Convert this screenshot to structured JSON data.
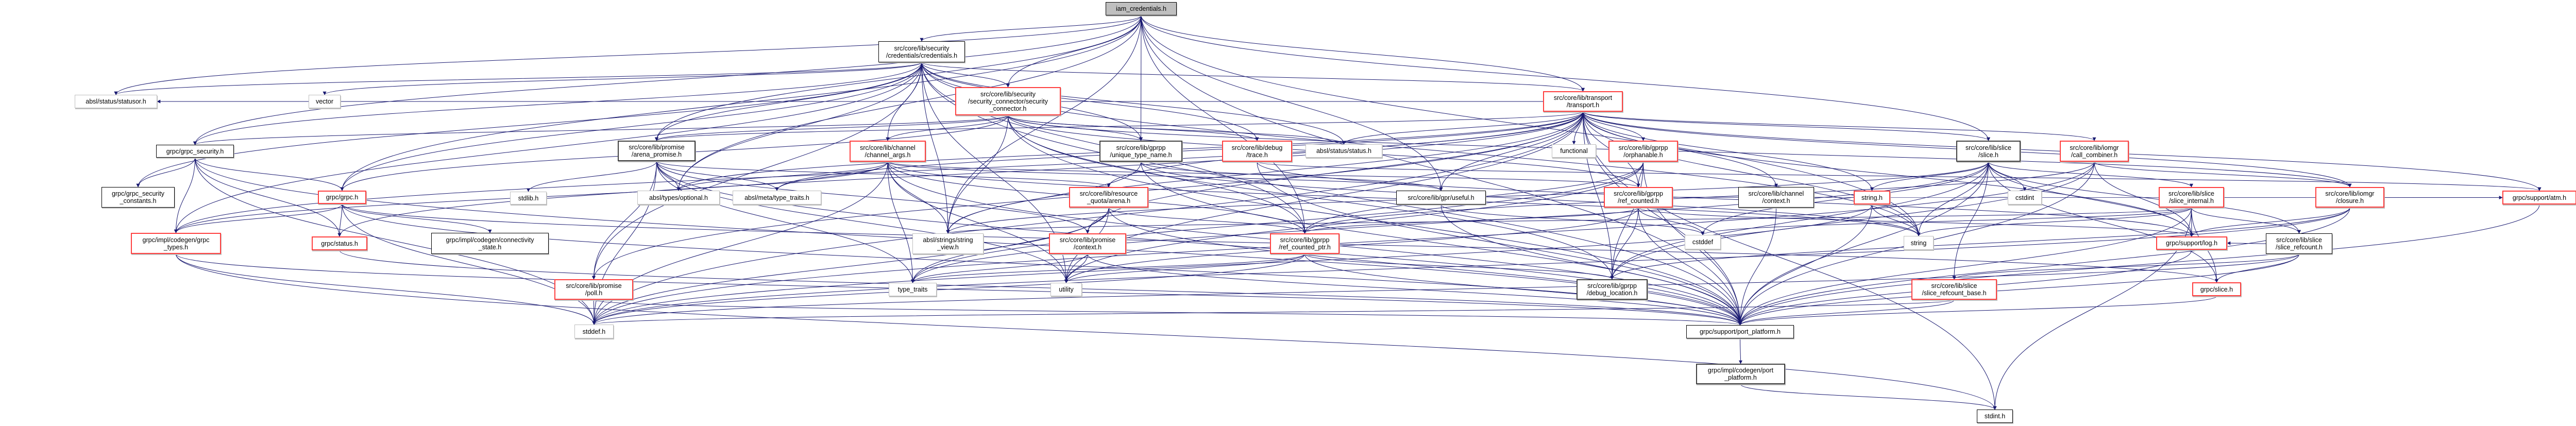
{
  "colors": {
    "edge": "#191970",
    "incomplete_border": "#ff4040",
    "documented_border": "#000000",
    "external_border": "#bfbfbf",
    "root_fill": "#bfbfbf"
  },
  "nodes": [
    {
      "id": "root",
      "label": [
        "iam_credentials.h"
      ],
      "style": "root"
    },
    {
      "id": "credentials",
      "label": [
        "src/core/lib/security",
        "/credentials/credentials.h"
      ],
      "style": "black"
    },
    {
      "id": "statusor",
      "label": [
        "absl/status/statusor.h"
      ],
      "style": "gray"
    },
    {
      "id": "vector",
      "label": [
        "vector"
      ],
      "style": "gray"
    },
    {
      "id": "sec_conn",
      "label": [
        "src/core/lib/security",
        "/security_connector/security",
        "_connector.h"
      ],
      "style": "red"
    },
    {
      "id": "transport",
      "label": [
        "src/core/lib/transport",
        "/transport.h"
      ],
      "style": "red"
    },
    {
      "id": "grpc_security",
      "label": [
        "grpc/grpc_security.h"
      ],
      "style": "black"
    },
    {
      "id": "arena_promise",
      "label": [
        "src/core/lib/promise",
        "/arena_promise.h"
      ],
      "style": "dark"
    },
    {
      "id": "channel_args",
      "label": [
        "src/core/lib/channel",
        "/channel_args.h"
      ],
      "style": "red"
    },
    {
      "id": "unique_type_name",
      "label": [
        "src/core/lib/gprpp",
        "/unique_type_name.h"
      ],
      "style": "dark"
    },
    {
      "id": "trace",
      "label": [
        "src/core/lib/debug",
        "/trace.h"
      ],
      "style": "red"
    },
    {
      "id": "status",
      "label": [
        "absl/status/status.h"
      ],
      "style": "gray"
    },
    {
      "id": "functional",
      "label": [
        "functional"
      ],
      "style": "gray"
    },
    {
      "id": "orphanable",
      "label": [
        "src/core/lib/gprpp",
        "/orphanable.h"
      ],
      "style": "red"
    },
    {
      "id": "slice",
      "label": [
        "src/core/lib/slice",
        "/slice.h"
      ],
      "style": "dark"
    },
    {
      "id": "call_combiner",
      "label": [
        "src/core/lib/iomgr",
        "/call_combiner.h"
      ],
      "style": "red"
    },
    {
      "id": "grpc_security_constants",
      "label": [
        "grpc/grpc_security",
        "_constants.h"
      ],
      "style": "black"
    },
    {
      "id": "grpc_h",
      "label": [
        "grpc/grpc.h"
      ],
      "style": "red"
    },
    {
      "id": "stdlib",
      "label": [
        "stdlib.h"
      ],
      "style": "gray"
    },
    {
      "id": "optional",
      "label": [
        "absl/types/optional.h"
      ],
      "style": "gray"
    },
    {
      "id": "absl_type_traits",
      "label": [
        "absl/meta/type_traits.h"
      ],
      "style": "gray"
    },
    {
      "id": "arena",
      "label": [
        "src/core/lib/resource",
        "_quota/arena.h"
      ],
      "style": "red"
    },
    {
      "id": "useful",
      "label": [
        "src/core/lib/gpr/useful.h"
      ],
      "style": "black"
    },
    {
      "id": "ref_counted",
      "label": [
        "src/core/lib/gprpp",
        "/ref_counted.h"
      ],
      "style": "red"
    },
    {
      "id": "channel_context",
      "label": [
        "src/core/lib/channel",
        "/context.h"
      ],
      "style": "black"
    },
    {
      "id": "string_h",
      "label": [
        "string.h"
      ],
      "style": "red"
    },
    {
      "id": "cstdint",
      "label": [
        "cstdint"
      ],
      "style": "gray"
    },
    {
      "id": "slice_internal",
      "label": [
        "src/core/lib/slice",
        "/slice_internal.h"
      ],
      "style": "red"
    },
    {
      "id": "closure",
      "label": [
        "src/core/lib/iomgr",
        "/closure.h"
      ],
      "style": "red"
    },
    {
      "id": "atm",
      "label": [
        "grpc/support/atm.h"
      ],
      "style": "red"
    },
    {
      "id": "grpc_types",
      "label": [
        "grpc/impl/codegen/grpc",
        "_types.h"
      ],
      "style": "red"
    },
    {
      "id": "grpc_status",
      "label": [
        "grpc/status.h"
      ],
      "style": "red"
    },
    {
      "id": "connectivity",
      "label": [
        "grpc/impl/codegen/connectivity",
        "_state.h"
      ],
      "style": "black"
    },
    {
      "id": "string_view",
      "label": [
        "absl/strings/string",
        "_view.h"
      ],
      "style": "gray"
    },
    {
      "id": "promise_context",
      "label": [
        "src/core/lib/promise",
        "/context.h"
      ],
      "style": "red"
    },
    {
      "id": "ref_counted_ptr",
      "label": [
        "src/core/lib/gprpp",
        "/ref_counted_ptr.h"
      ],
      "style": "red"
    },
    {
      "id": "cstddef",
      "label": [
        "cstddef"
      ],
      "style": "gray"
    },
    {
      "id": "string",
      "label": [
        "string"
      ],
      "style": "gray"
    },
    {
      "id": "log",
      "label": [
        "grpc/support/log.h"
      ],
      "style": "red"
    },
    {
      "id": "slice_refcount",
      "label": [
        "src/core/lib/slice",
        "/slice_refcount.h"
      ],
      "style": "black"
    },
    {
      "id": "poll",
      "label": [
        "src/core/lib/promise",
        "/poll.h"
      ],
      "style": "red"
    },
    {
      "id": "type_traits",
      "label": [
        "type_traits"
      ],
      "style": "gray"
    },
    {
      "id": "utility",
      "label": [
        "utility"
      ],
      "style": "gray"
    },
    {
      "id": "debug_location",
      "label": [
        "src/core/lib/gprpp",
        "/debug_location.h"
      ],
      "style": "dark"
    },
    {
      "id": "slice_refcount_base",
      "label": [
        "src/core/lib/slice",
        "/slice_refcount_base.h"
      ],
      "style": "red"
    },
    {
      "id": "grpc_slice",
      "label": [
        "grpc/slice.h"
      ],
      "style": "red"
    },
    {
      "id": "stddef",
      "label": [
        "stddef.h"
      ],
      "style": "gray"
    },
    {
      "id": "port_platform",
      "label": [
        "grpc/support/port_platform.h"
      ],
      "style": "black"
    },
    {
      "id": "codegen_port",
      "label": [
        "grpc/impl/codegen/port",
        "_platform.h"
      ],
      "style": "dark"
    },
    {
      "id": "stdint",
      "label": [
        "stdint.h"
      ],
      "style": "black"
    }
  ],
  "edges": [
    [
      "root",
      "credentials"
    ],
    [
      "root",
      "statusor"
    ],
    [
      "root",
      "grpc_security"
    ],
    [
      "root",
      "sec_conn"
    ],
    [
      "root",
      "transport"
    ],
    [
      "root",
      "unique_type_name"
    ],
    [
      "root",
      "useful"
    ],
    [
      "root",
      "slice"
    ],
    [
      "root",
      "string"
    ],
    [
      "root",
      "port_platform"
    ],
    [
      "root",
      "arena_promise"
    ],
    [
      "root",
      "grpc_h"
    ],
    [
      "root",
      "optional"
    ],
    [
      "root",
      "string_view"
    ],
    [
      "root",
      "ref_counted_ptr"
    ],
    [
      "credentials",
      "statusor"
    ],
    [
      "credentials",
      "vector"
    ],
    [
      "credentials",
      "grpc_security"
    ],
    [
      "credentials",
      "grpc_security_constants"
    ],
    [
      "credentials",
      "grpc_h"
    ],
    [
      "credentials",
      "sec_conn"
    ],
    [
      "credentials",
      "channel_args"
    ],
    [
      "credentials",
      "arena_promise"
    ],
    [
      "credentials",
      "unique_type_name"
    ],
    [
      "credentials",
      "trace"
    ],
    [
      "credentials",
      "status"
    ],
    [
      "credentials",
      "transport"
    ],
    [
      "credentials",
      "string_view"
    ],
    [
      "credentials",
      "ref_counted_ptr"
    ],
    [
      "credentials",
      "utility"
    ],
    [
      "credentials",
      "poll"
    ],
    [
      "credentials",
      "port_platform"
    ],
    [
      "credentials",
      "optional"
    ],
    [
      "credentials",
      "string"
    ],
    [
      "credentials",
      "grpc_types"
    ],
    [
      "sec_conn",
      "grpc_security"
    ],
    [
      "sec_conn",
      "arena_promise"
    ],
    [
      "sec_conn",
      "status"
    ],
    [
      "sec_conn",
      "string_view"
    ],
    [
      "sec_conn",
      "unique_type_name"
    ],
    [
      "sec_conn",
      "trace"
    ],
    [
      "sec_conn",
      "ref_counted"
    ],
    [
      "sec_conn",
      "ref_counted_ptr"
    ],
    [
      "sec_conn",
      "debug_location"
    ],
    [
      "sec_conn",
      "closure"
    ],
    [
      "sec_conn",
      "port_platform"
    ],
    [
      "sec_conn",
      "grpc_h"
    ],
    [
      "sec_conn",
      "channel_args"
    ],
    [
      "transport",
      "statusor"
    ],
    [
      "transport",
      "functional"
    ],
    [
      "transport",
      "orphanable"
    ],
    [
      "transport",
      "ref_counted"
    ],
    [
      "transport",
      "channel_context"
    ],
    [
      "transport",
      "string_h"
    ],
    [
      "transport",
      "string"
    ],
    [
      "transport",
      "slice"
    ],
    [
      "transport",
      "call_combiner"
    ],
    [
      "transport",
      "closure"
    ],
    [
      "transport",
      "atm"
    ],
    [
      "transport",
      "log"
    ],
    [
      "transport",
      "arena_promise"
    ],
    [
      "transport",
      "arena"
    ],
    [
      "transport",
      "promise_context"
    ],
    [
      "transport",
      "status"
    ],
    [
      "transport",
      "string_view"
    ],
    [
      "transport",
      "utility"
    ],
    [
      "transport",
      "debug_location"
    ],
    [
      "transport",
      "port_platform"
    ],
    [
      "transport",
      "stddef"
    ],
    [
      "transport",
      "grpc_status"
    ],
    [
      "transport",
      "grpc_types"
    ],
    [
      "transport",
      "poll"
    ],
    [
      "transport",
      "optional"
    ],
    [
      "transport",
      "absl_type_traits"
    ],
    [
      "transport",
      "stdint"
    ],
    [
      "transport",
      "useful"
    ],
    [
      "grpc_security",
      "grpc_security_constants"
    ],
    [
      "grpc_security",
      "grpc_h"
    ],
    [
      "grpc_security",
      "grpc_status"
    ],
    [
      "grpc_security",
      "stddef"
    ],
    [
      "grpc_security",
      "port_platform"
    ],
    [
      "grpc_security",
      "grpc_types"
    ],
    [
      "grpc_h",
      "grpc_types"
    ],
    [
      "grpc_h",
      "grpc_status"
    ],
    [
      "grpc_h",
      "connectivity"
    ],
    [
      "grpc_h",
      "stddef"
    ],
    [
      "grpc_h",
      "port_platform"
    ],
    [
      "grpc_h",
      "grpc_slice"
    ],
    [
      "arena_promise",
      "stdlib"
    ],
    [
      "arena_promise",
      "optional"
    ],
    [
      "arena_promise",
      "absl_type_traits"
    ],
    [
      "arena_promise",
      "arena"
    ],
    [
      "arena_promise",
      "promise_context"
    ],
    [
      "arena_promise",
      "poll"
    ],
    [
      "arena_promise",
      "utility"
    ],
    [
      "arena_promise",
      "type_traits"
    ],
    [
      "arena_promise",
      "port_platform"
    ],
    [
      "arena_promise",
      "stddef"
    ],
    [
      "channel_args",
      "optional"
    ],
    [
      "channel_args",
      "absl_type_traits"
    ],
    [
      "channel_args",
      "string_view"
    ],
    [
      "channel_args",
      "ref_counted"
    ],
    [
      "channel_args",
      "ref_counted_ptr"
    ],
    [
      "channel_args",
      "useful"
    ],
    [
      "channel_args",
      "utility"
    ],
    [
      "channel_args",
      "type_traits"
    ],
    [
      "channel_args",
      "port_platform"
    ],
    [
      "channel_args",
      "stddef"
    ],
    [
      "channel_args",
      "grpc_types"
    ],
    [
      "channel_args",
      "string"
    ],
    [
      "unique_type_name",
      "string_view"
    ],
    [
      "unique_type_name",
      "useful"
    ],
    [
      "unique_type_name",
      "port_platform"
    ],
    [
      "unique_type_name",
      "string"
    ],
    [
      "trace",
      "port_platform"
    ],
    [
      "trace",
      "atm"
    ],
    [
      "trace",
      "log"
    ],
    [
      "arena",
      "promise_context"
    ],
    [
      "arena",
      "utility"
    ],
    [
      "arena",
      "stddef"
    ],
    [
      "arena",
      "port_platform"
    ],
    [
      "arena",
      "type_traits"
    ],
    [
      "arena",
      "ref_counted_ptr"
    ],
    [
      "useful",
      "port_platform"
    ],
    [
      "useful",
      "cstddef"
    ],
    [
      "orphanable",
      "ref_counted"
    ],
    [
      "orphanable",
      "ref_counted_ptr"
    ],
    [
      "orphanable",
      "debug_location"
    ],
    [
      "orphanable",
      "port_platform"
    ],
    [
      "orphanable",
      "utility"
    ],
    [
      "orphanable",
      "type_traits"
    ],
    [
      "ref_counted",
      "ref_counted_ptr"
    ],
    [
      "ref_counted",
      "debug_location"
    ],
    [
      "ref_counted",
      "port_platform"
    ],
    [
      "ref_counted",
      "cstddef"
    ],
    [
      "ref_counted",
      "atm"
    ],
    [
      "ref_counted",
      "log"
    ],
    [
      "ref_counted",
      "utility"
    ],
    [
      "ref_counted_ptr",
      "debug_location"
    ],
    [
      "ref_counted_ptr",
      "utility"
    ],
    [
      "ref_counted_ptr",
      "type_traits"
    ],
    [
      "ref_counted_ptr",
      "port_platform"
    ],
    [
      "ref_counted_ptr",
      "stddef"
    ],
    [
      "promise_context",
      "utility"
    ],
    [
      "promise_context",
      "type_traits"
    ],
    [
      "promise_context",
      "port_platform"
    ],
    [
      "channel_context",
      "port_platform"
    ],
    [
      "string_h",
      "string"
    ],
    [
      "string_h",
      "port_platform"
    ],
    [
      "string_h",
      "stddef"
    ],
    [
      "slice",
      "string_h"
    ],
    [
      "slice",
      "cstdint"
    ],
    [
      "slice",
      "string"
    ],
    [
      "slice",
      "slice_internal"
    ],
    [
      "slice",
      "slice_refcount"
    ],
    [
      "slice",
      "slice_refcount_base"
    ],
    [
      "slice",
      "grpc_slice"
    ],
    [
      "slice",
      "log"
    ],
    [
      "slice",
      "port_platform"
    ],
    [
      "slice",
      "string_view"
    ],
    [
      "slice",
      "debug_location"
    ],
    [
      "slice",
      "cstddef"
    ],
    [
      "slice",
      "type_traits"
    ],
    [
      "call_combiner",
      "closure"
    ],
    [
      "call_combiner",
      "log"
    ],
    [
      "call_combiner",
      "ref_counted_ptr"
    ],
    [
      "call_combiner",
      "port_platform"
    ],
    [
      "call_combiner",
      "debug_location"
    ],
    [
      "call_combiner",
      "stddef"
    ],
    [
      "slice_internal",
      "log"
    ],
    [
      "slice_internal",
      "grpc_slice"
    ],
    [
      "slice_internal",
      "slice_refcount"
    ],
    [
      "slice_internal",
      "string_view"
    ],
    [
      "slice_internal",
      "port_platform"
    ],
    [
      "slice_internal",
      "string"
    ],
    [
      "slice_internal",
      "cstddef"
    ],
    [
      "slice_internal",
      "stdint"
    ],
    [
      "closure",
      "log"
    ],
    [
      "closure",
      "port_platform"
    ],
    [
      "closure",
      "debug_location"
    ],
    [
      "closure",
      "stddef"
    ],
    [
      "slice_refcount",
      "slice_refcount_base"
    ],
    [
      "slice_refcount",
      "grpc_slice"
    ],
    [
      "slice_refcount",
      "log"
    ],
    [
      "slice_refcount",
      "port_platform"
    ],
    [
      "slice_refcount",
      "stddef"
    ],
    [
      "slice_refcount_base",
      "port_platform"
    ],
    [
      "slice_refcount_base",
      "stddef"
    ],
    [
      "grpc_slice",
      "port_platform"
    ],
    [
      "log",
      "port_platform"
    ],
    [
      "atm",
      "port_platform"
    ],
    [
      "poll",
      "stddef"
    ],
    [
      "poll",
      "port_platform"
    ],
    [
      "grpc_types",
      "stddef"
    ],
    [
      "grpc_types",
      "port_platform"
    ],
    [
      "grpc_types",
      "stdint"
    ],
    [
      "grpc_status",
      "port_platform"
    ],
    [
      "port_platform",
      "codegen_port"
    ],
    [
      "codegen_port",
      "stdint"
    ]
  ]
}
